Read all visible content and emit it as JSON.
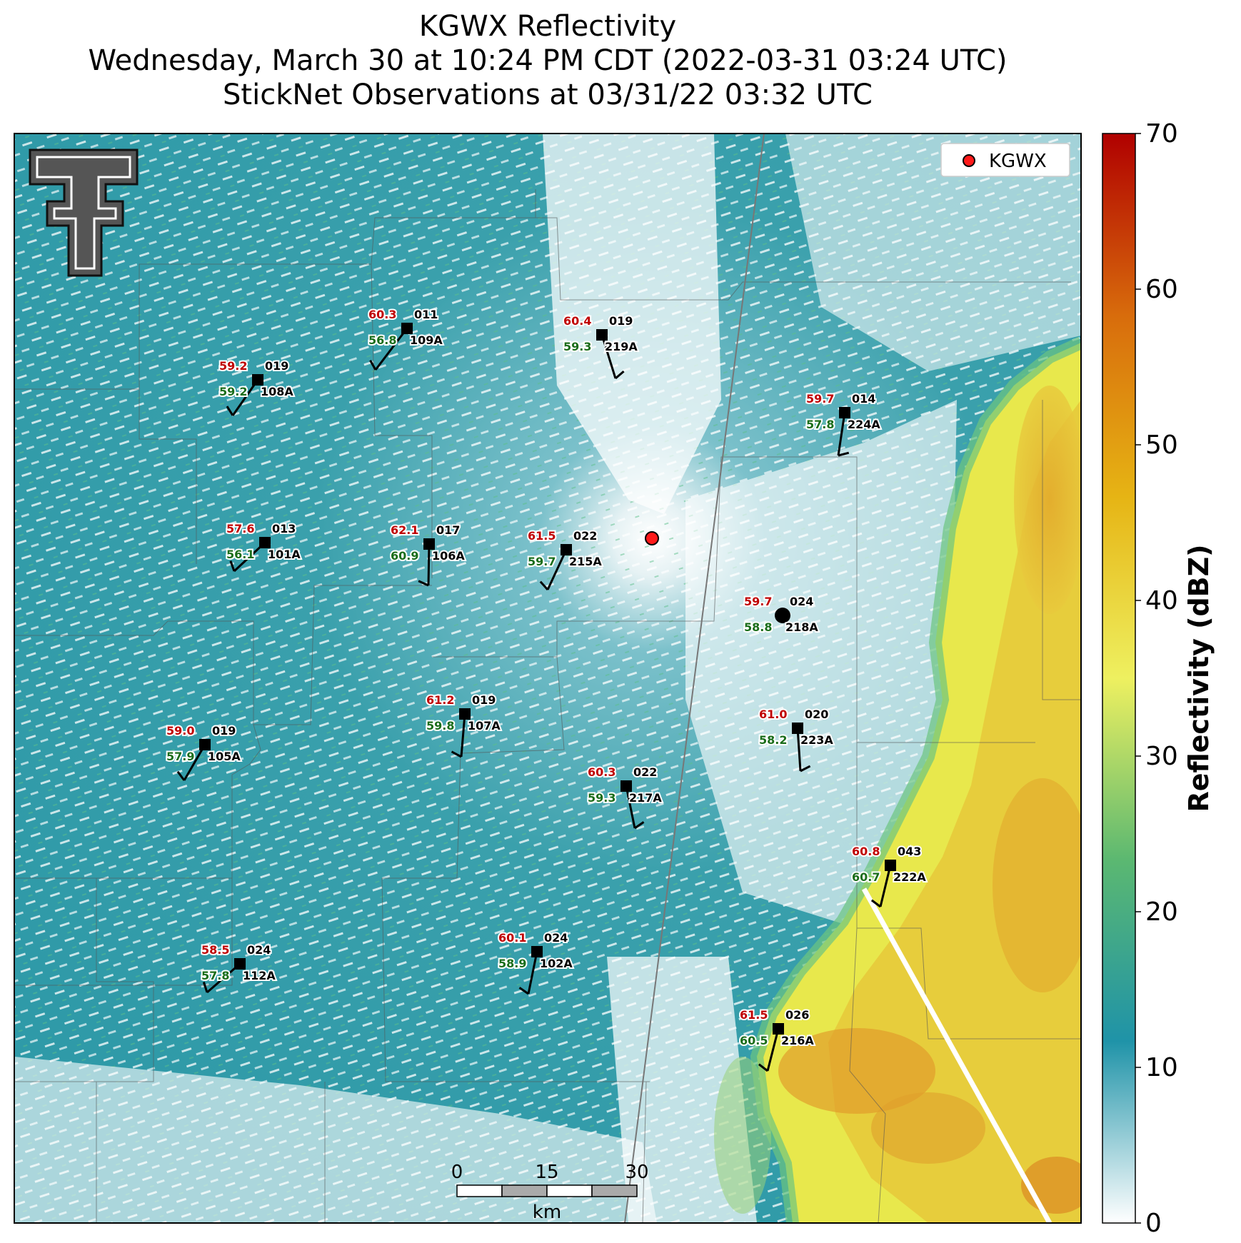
{
  "title": {
    "line1": "KGWX Reflectivity",
    "line2": "Wednesday, March 30 at 10:24 PM CDT (2022-03-31 03:24 UTC)",
    "line3": "StickNet Observations at 03/31/22 03:32 UTC"
  },
  "legend": {
    "label": "KGWX",
    "marker_color": "#ff1a1a"
  },
  "logo": {
    "lettering": "T",
    "name": "texas-tech-double-t-logo"
  },
  "colorbar": {
    "label": "Reflectivity (dBZ)",
    "min": 0,
    "max": 70,
    "ticks": [
      "0",
      "10",
      "20",
      "30",
      "40",
      "50",
      "60",
      "70"
    ],
    "stops": [
      "#ffffff",
      "#1f93a8",
      "#5bb871",
      "#eef060",
      "#e6b414",
      "#d86c0c",
      "#b00000"
    ]
  },
  "scalebar": {
    "ticks": [
      "0",
      "15",
      "30"
    ],
    "unit": "km"
  },
  "stations": [
    {
      "id": "109A",
      "temp": "60.3",
      "dew": "56.8",
      "code": "011"
    },
    {
      "id": "219A",
      "temp": "60.4",
      "dew": "59.3",
      "code": "019"
    },
    {
      "id": "108A",
      "temp": "59.2",
      "dew": "59.2",
      "code": "019"
    },
    {
      "id": "224A",
      "temp": "59.7",
      "dew": "57.8",
      "code": "014"
    },
    {
      "id": "101A",
      "temp": "57.6",
      "dew": "56.1",
      "code": "013"
    },
    {
      "id": "106A",
      "temp": "62.1",
      "dew": "60.9",
      "code": "017"
    },
    {
      "id": "215A",
      "temp": "61.5",
      "dew": "59.7",
      "code": "022"
    },
    {
      "id": "218A",
      "temp": "59.7",
      "dew": "58.8",
      "code": "024"
    },
    {
      "id": "107A",
      "temp": "61.2",
      "dew": "59.8",
      "code": "019"
    },
    {
      "id": "223A",
      "temp": "61.0",
      "dew": "58.2",
      "code": "020"
    },
    {
      "id": "105A",
      "temp": "59.0",
      "dew": "57.9",
      "code": "019"
    },
    {
      "id": "217A",
      "temp": "60.3",
      "dew": "59.3",
      "code": "022"
    },
    {
      "id": "222A",
      "temp": "60.8",
      "dew": "60.7",
      "code": "043"
    },
    {
      "id": "102A",
      "temp": "60.1",
      "dew": "58.9",
      "code": "024"
    },
    {
      "id": "112A",
      "temp": "58.5",
      "dew": "57.8",
      "code": "024"
    },
    {
      "id": "216A",
      "temp": "61.5",
      "dew": "60.5",
      "code": "026"
    }
  ]
}
